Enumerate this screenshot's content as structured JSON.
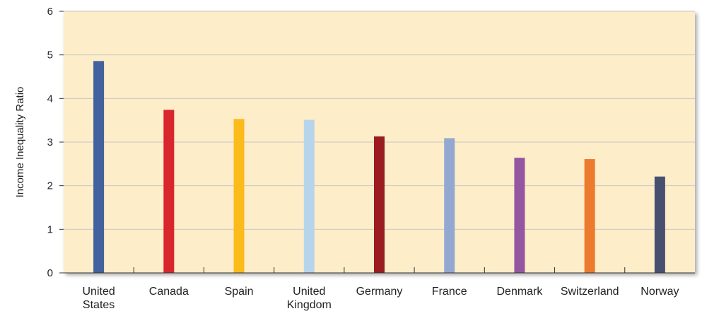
{
  "chart_data": {
    "type": "bar",
    "title": "",
    "xlabel": "",
    "ylabel": "Income Inequality Ratio",
    "ylim": [
      0,
      6
    ],
    "yticks": [
      "0",
      "1",
      "2",
      "3",
      "4",
      "5",
      "6"
    ],
    "grid": true,
    "legend": "none",
    "categories": [
      [
        "United",
        "States"
      ],
      [
        "Canada"
      ],
      [
        "Spain"
      ],
      [
        "United",
        "Kingdom"
      ],
      [
        "Germany"
      ],
      [
        "France"
      ],
      [
        "Denmark"
      ],
      [
        "Switzerland"
      ],
      [
        "Norway"
      ]
    ],
    "values": [
      4.86,
      3.74,
      3.53,
      3.51,
      3.13,
      3.09,
      2.64,
      2.61,
      2.21
    ],
    "colors": [
      "#41629d",
      "#d9262c",
      "#fbbb1a",
      "#b7d5ea",
      "#9a1c20",
      "#93a8d1",
      "#9456a0",
      "#ec7b2d",
      "#48506f"
    ],
    "plot_background": "#fdedc9",
    "gridline_color": "#c8c8c8"
  }
}
